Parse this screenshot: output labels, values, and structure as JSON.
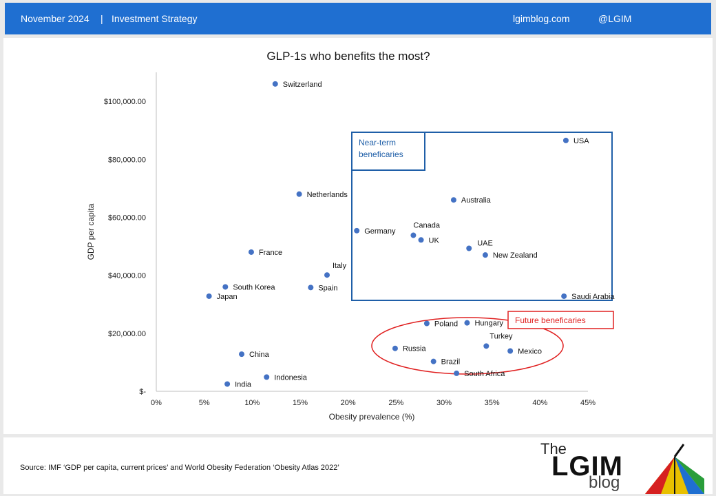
{
  "header": {
    "date": "November 2024",
    "separator": "|",
    "category": "Investment Strategy",
    "site": "lgimblog.com",
    "handle": "@LGIM"
  },
  "footer": {
    "source": "Source: IMF ‘GDP per capita, current prices’ and World Obesity Federation ‘Obesity Atlas 2022’",
    "logo": {
      "the": "The",
      "lgim": "LGIM",
      "blog": "blog"
    }
  },
  "colors": {
    "header_bg": "#1f6fd1",
    "point": "#4472c4",
    "near_term": "#1f5fa8",
    "future": "#e02020"
  },
  "chart_data": {
    "type": "scatter",
    "title": "GLP-1s who benefits the most?",
    "xlabel": "Obesity prevalence (%)",
    "ylabel": "GDP per capita",
    "xlim": [
      0,
      45
    ],
    "ylim": [
      0,
      110000
    ],
    "xticks": [
      0,
      5,
      10,
      15,
      20,
      25,
      30,
      35,
      40,
      45
    ],
    "xtick_labels": [
      "0%",
      "5%",
      "10%",
      "15%",
      "20%",
      "25%",
      "30%",
      "35%",
      "40%",
      "45%"
    ],
    "yticks": [
      0,
      20000,
      40000,
      60000,
      80000,
      100000
    ],
    "ytick_labels": [
      "$-",
      "$20,000.00",
      "$40,000.00",
      "$60,000.00",
      "$80,000.00",
      "$100,000.00"
    ],
    "grid": false,
    "points": [
      {
        "label": "Switzerland",
        "x": 12.4,
        "y": 106000
      },
      {
        "label": "USA",
        "x": 42.7,
        "y": 86500
      },
      {
        "label": "Netherlands",
        "x": 14.9,
        "y": 68000
      },
      {
        "label": "Australia",
        "x": 31.0,
        "y": 66000
      },
      {
        "label": "Germany",
        "x": 20.9,
        "y": 55400
      },
      {
        "label": "Canada",
        "x": 26.8,
        "y": 53800
      },
      {
        "label": "UK",
        "x": 27.6,
        "y": 52200
      },
      {
        "label": "UAE",
        "x": 32.6,
        "y": 49300
      },
      {
        "label": "New Zealand",
        "x": 34.3,
        "y": 47000
      },
      {
        "label": "France",
        "x": 9.9,
        "y": 48000
      },
      {
        "label": "Italy",
        "x": 17.8,
        "y": 40100
      },
      {
        "label": "South Korea",
        "x": 7.2,
        "y": 36000
      },
      {
        "label": "Spain",
        "x": 16.1,
        "y": 35800
      },
      {
        "label": "Japan",
        "x": 5.5,
        "y": 32800
      },
      {
        "label": "Saudi Arabia",
        "x": 42.5,
        "y": 32800
      },
      {
        "label": "Poland",
        "x": 28.2,
        "y": 23400
      },
      {
        "label": "Hungary",
        "x": 32.4,
        "y": 23600
      },
      {
        "label": "Russia",
        "x": 24.9,
        "y": 14800
      },
      {
        "label": "Turkey",
        "x": 34.4,
        "y": 15600
      },
      {
        "label": "Mexico",
        "x": 36.9,
        "y": 13900
      },
      {
        "label": "China",
        "x": 8.9,
        "y": 12800
      },
      {
        "label": "Brazil",
        "x": 28.9,
        "y": 10300
      },
      {
        "label": "South Africa",
        "x": 31.3,
        "y": 6200
      },
      {
        "label": "Indonesia",
        "x": 11.5,
        "y": 4900
      },
      {
        "label": "India",
        "x": 7.4,
        "y": 2500
      }
    ],
    "annotations": [
      {
        "name": "near-term",
        "text_lines": [
          "Near-term",
          "beneficaries"
        ]
      },
      {
        "name": "future",
        "text": "Future beneficaries"
      }
    ]
  }
}
